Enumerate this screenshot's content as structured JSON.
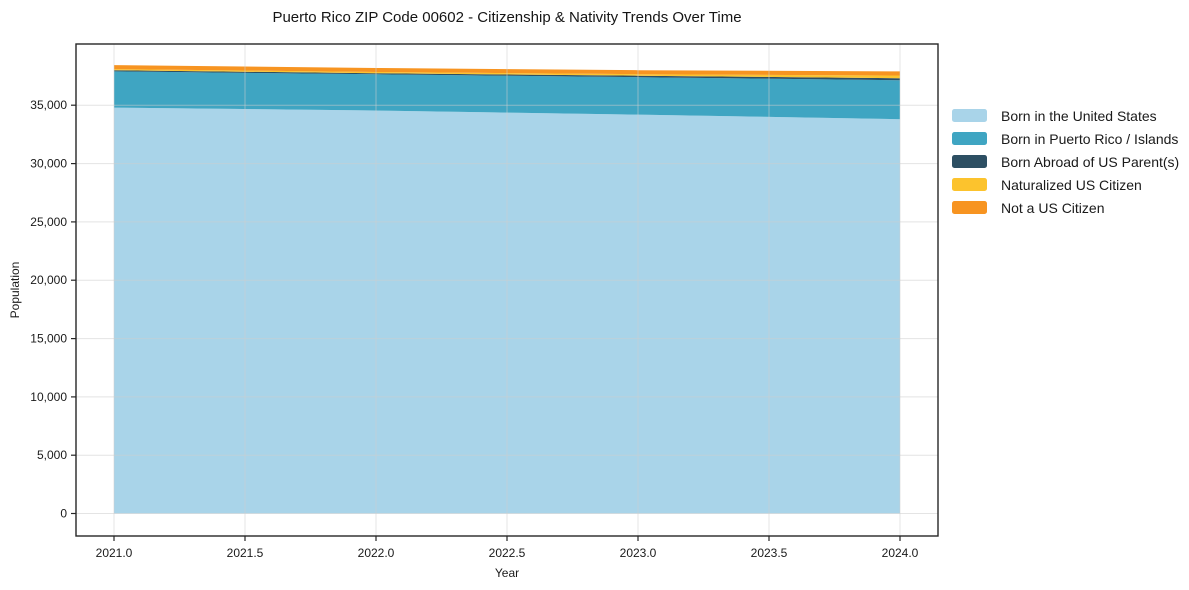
{
  "chart_data": {
    "type": "area",
    "stacked": true,
    "title": "Puerto Rico ZIP Code 00602 - Citizenship & Nativity Trends Over Time",
    "xlabel": "Year",
    "ylabel": "Population",
    "x": [
      2021,
      2022,
      2023,
      2024
    ],
    "series": [
      {
        "name": "Born in the United States",
        "color": "#a9d4e9",
        "values": [
          34800,
          34550,
          34200,
          33800
        ]
      },
      {
        "name": "Born in Puerto Rico / Islands",
        "color": "#3fa5c2",
        "values": [
          3100,
          3100,
          3200,
          3350
        ]
      },
      {
        "name": "Born Abroad of US Parent(s)",
        "color": "#2d4f63",
        "values": [
          100,
          100,
          130,
          170
        ]
      },
      {
        "name": "Naturalized US Citizen",
        "color": "#fcc32d",
        "values": [
          100,
          100,
          130,
          230
        ]
      },
      {
        "name": "Not a US Citizen",
        "color": "#f79421",
        "values": [
          340,
          340,
          340,
          350
        ]
      }
    ],
    "x_ticks": {
      "values": [
        2021.0,
        2021.5,
        2022.0,
        2022.5,
        2023.0,
        2023.5,
        2024.0
      ],
      "labels": [
        "2021.0",
        "2021.5",
        "2022.0",
        "2022.5",
        "2023.0",
        "2023.5",
        "2024.0"
      ]
    },
    "y_ticks": {
      "values": [
        0,
        5000,
        10000,
        15000,
        20000,
        25000,
        30000,
        35000
      ],
      "labels": [
        "0",
        "5,000",
        "10,000",
        "15,000",
        "20,000",
        "25,000",
        "30,000",
        "35,000"
      ]
    },
    "xlim": [
      2020.855,
      2024.145
    ],
    "ylim": [
      -1925,
      40250
    ],
    "grid": true,
    "legend_position": "right"
  }
}
